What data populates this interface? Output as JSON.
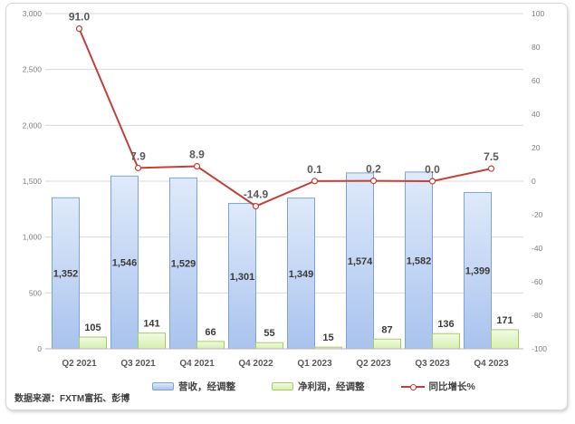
{
  "chart_data": {
    "type": "bar",
    "subtype": "combo-bar-line",
    "title": "",
    "categories": [
      "Q2 2021",
      "Q3 2021",
      "Q4 2021",
      "Q4 2022",
      "Q1 2023",
      "Q2 2023",
      "Q3 2023",
      "Q4 2023"
    ],
    "series": [
      {
        "name": "营收，经调整",
        "type": "bar",
        "axis": "left",
        "values": [
          1352,
          1546,
          1529,
          1301,
          1349,
          1574,
          1582,
          1399
        ],
        "labels": [
          "1,352",
          "1,546",
          "1,529",
          "1,301",
          "1,349",
          "1,574",
          "1,582",
          "1,399"
        ],
        "label_position": "inside-center"
      },
      {
        "name": "净利润，经调整",
        "type": "bar",
        "axis": "left",
        "values": [
          105,
          141,
          66,
          55,
          15,
          87,
          136,
          171
        ],
        "labels": [
          "105",
          "141",
          "66",
          "55",
          "15",
          "87",
          "136",
          "171"
        ],
        "label_position": "outside-end"
      },
      {
        "name": "同比增长%",
        "type": "line",
        "axis": "right",
        "values": [
          91.0,
          7.9,
          8.9,
          -14.9,
          0.1,
          0.2,
          0.0,
          7.5
        ],
        "labels": [
          "91.0",
          "7.9",
          "8.9",
          "-14.9",
          "0.1",
          "0.2",
          "0.0",
          "7.5"
        ]
      }
    ],
    "left_axis": {
      "min": 0,
      "max": 3000,
      "tick_values": [
        0,
        500,
        1000,
        1500,
        2000,
        2500,
        3000
      ],
      "tick_labels": [
        "0",
        "500",
        "1,000",
        "1,500",
        "2,000",
        "2,500",
        "3,000"
      ]
    },
    "right_axis": {
      "min": -100,
      "max": 100,
      "tick_values": [
        100,
        80,
        60,
        40,
        20,
        0,
        -20,
        -40,
        -60,
        -80,
        -100
      ],
      "tick_labels": [
        "100",
        "80",
        "60",
        "40",
        "20",
        "0",
        "-20",
        "-40",
        "-60",
        "-80",
        "-100"
      ]
    },
    "legend_position": "bottom",
    "grid": true
  },
  "source_note": "数据来源：FXTM富拓、彭博",
  "colors": {
    "revenue_fill_top": "#dfeafa",
    "revenue_fill_bottom": "#a9c3ee",
    "revenue_border": "#7fa3d8",
    "profit_fill_top": "#f1fbe3",
    "profit_fill_bottom": "#d5efae",
    "profit_border": "#a5cd66",
    "line": "#c0413a",
    "grid": "#d9d9d9",
    "axis_line": "#b7b7b7",
    "tick_text": "#7f7f7f",
    "category_text": "#595959",
    "bar_label_text": "#3a3a3a",
    "line_label_text": "#595959",
    "panel_border": "#d8d8d8"
  }
}
